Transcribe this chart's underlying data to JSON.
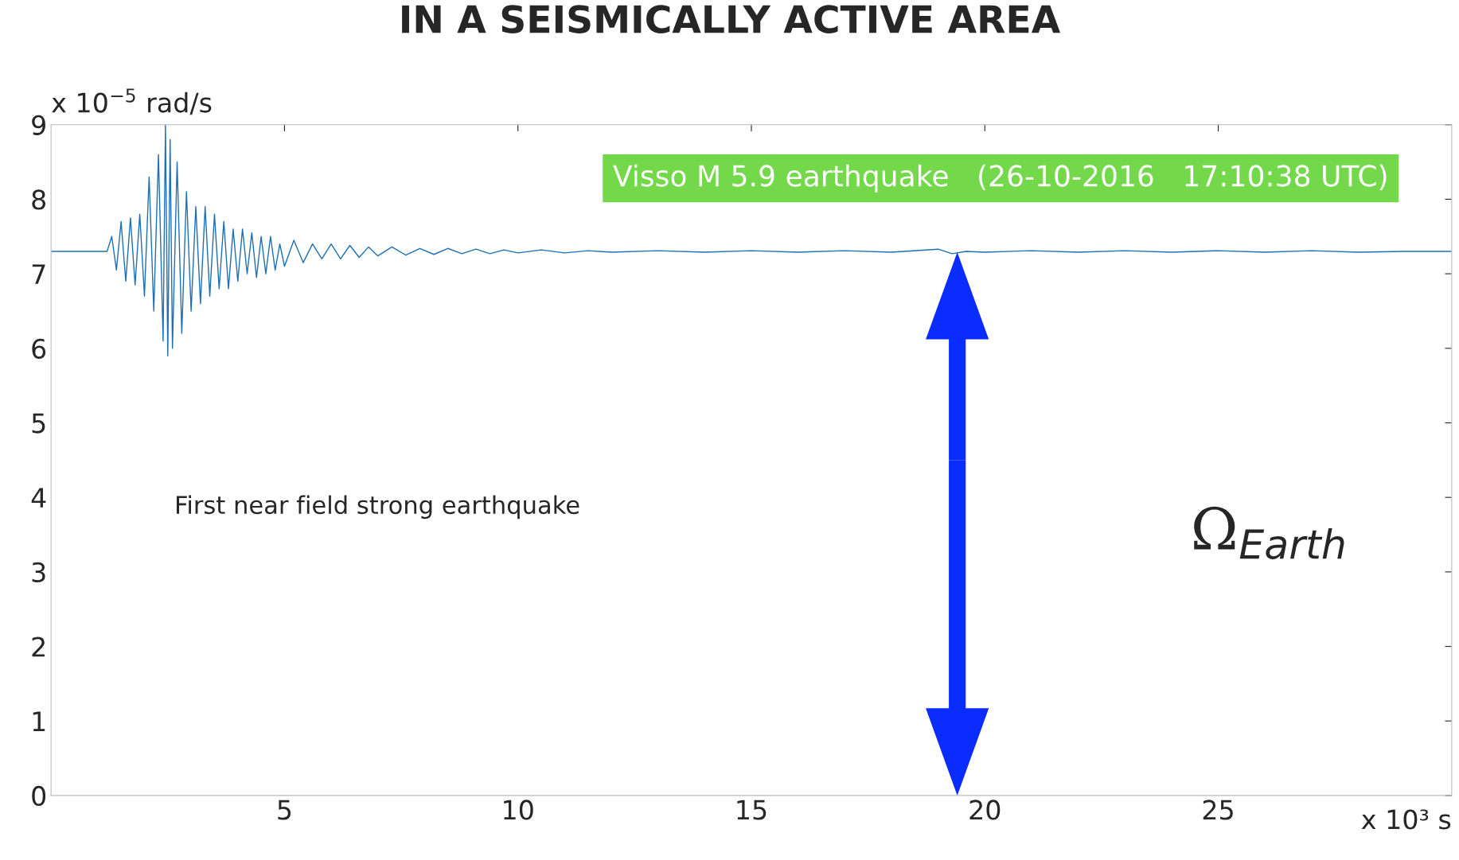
{
  "chart_data": {
    "type": "line",
    "title": "IN A SEISMICALLY ACTIVE AREA",
    "ylabel": "x 10$^{−5}$ rad/s",
    "xlabel": "x 10³ s",
    "xlim": [
      0,
      30
    ],
    "ylim": [
      0,
      9
    ],
    "xticks": [
      5,
      10,
      15,
      20,
      25
    ],
    "yticks": [
      0,
      1,
      2,
      3,
      4,
      5,
      6,
      7,
      8,
      9
    ],
    "grid": false,
    "legend": false,
    "series": [
      {
        "color": "#1f6fb4",
        "x": [
          0,
          1.2,
          1.3,
          1.4,
          1.5,
          1.6,
          1.7,
          1.8,
          1.9,
          2.0,
          2.1,
          2.2,
          2.3,
          2.4,
          2.45,
          2.5,
          2.55,
          2.6,
          2.7,
          2.8,
          2.9,
          3.0,
          3.1,
          3.2,
          3.3,
          3.4,
          3.5,
          3.6,
          3.7,
          3.8,
          3.9,
          4.0,
          4.1,
          4.2,
          4.3,
          4.4,
          4.5,
          4.6,
          4.7,
          4.8,
          4.9,
          5.0,
          5.2,
          5.4,
          5.6,
          5.8,
          6.0,
          6.2,
          6.4,
          6.6,
          6.8,
          7.0,
          7.3,
          7.6,
          7.9,
          8.2,
          8.5,
          8.8,
          9.1,
          9.4,
          9.7,
          10.0,
          10.5,
          11.0,
          11.5,
          12.0,
          13.0,
          14.0,
          15.0,
          16.0,
          17.0,
          18.0,
          19.0,
          19.3,
          19.6,
          20.0,
          21.0,
          22.0,
          23.0,
          24.0,
          25.0,
          26.0,
          27.0,
          28.0,
          29.0,
          30.0
        ],
        "values": [
          7.3,
          7.3,
          7.5,
          7.05,
          7.7,
          6.9,
          7.75,
          6.85,
          7.8,
          6.7,
          8.3,
          6.5,
          8.6,
          6.1,
          9.0,
          5.9,
          8.8,
          6.0,
          8.5,
          6.2,
          8.1,
          6.5,
          7.9,
          6.6,
          7.9,
          6.7,
          7.8,
          6.8,
          7.7,
          6.8,
          7.6,
          6.9,
          7.6,
          7.0,
          7.55,
          6.95,
          7.5,
          7.0,
          7.5,
          7.05,
          7.4,
          7.1,
          7.45,
          7.15,
          7.4,
          7.2,
          7.4,
          7.2,
          7.38,
          7.22,
          7.36,
          7.24,
          7.36,
          7.25,
          7.34,
          7.26,
          7.34,
          7.27,
          7.33,
          7.27,
          7.32,
          7.28,
          7.32,
          7.28,
          7.31,
          7.29,
          7.31,
          7.29,
          7.31,
          7.29,
          7.31,
          7.29,
          7.33,
          7.27,
          7.3,
          7.29,
          7.31,
          7.29,
          7.31,
          7.29,
          7.31,
          7.29,
          7.31,
          7.29,
          7.3,
          7.3
        ]
      }
    ],
    "annotations": [
      "Visso M 5.9 earthquake   (26-10-2016   17:10:38 UTC)",
      "First near field strong earthquake",
      "Ω$_{Earth}$"
    ]
  }
}
